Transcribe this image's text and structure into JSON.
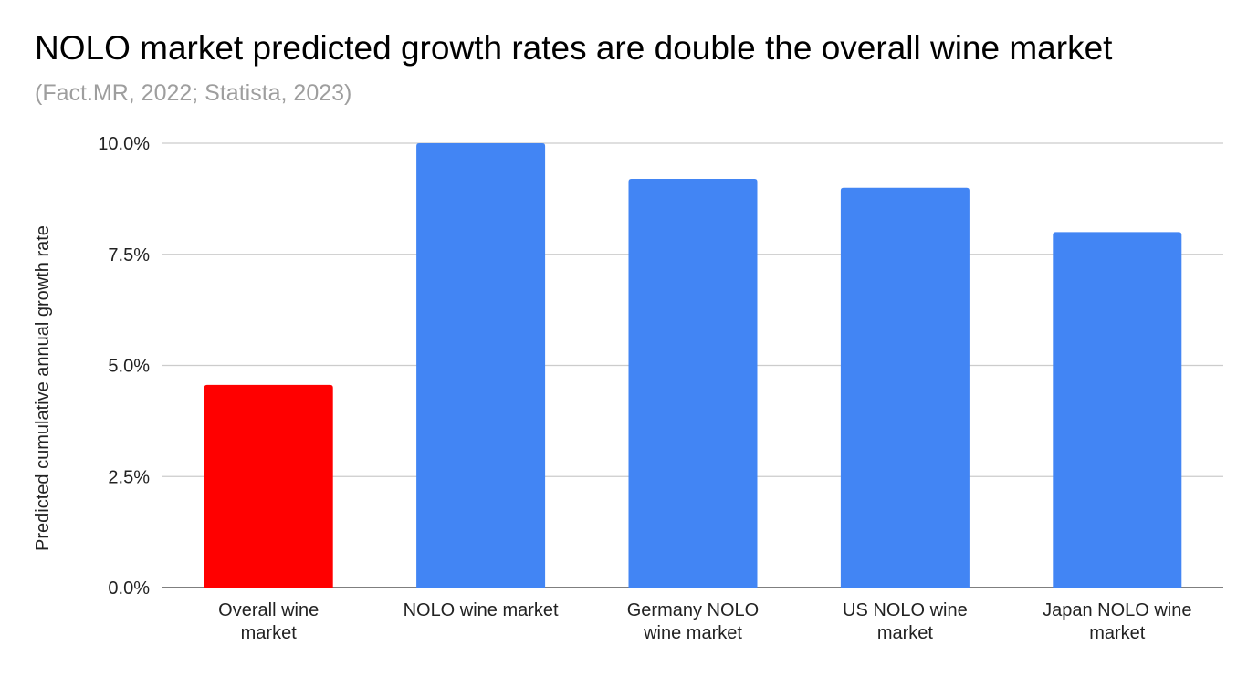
{
  "chart_data": {
    "type": "bar",
    "title": "NOLO market predicted growth rates are double the overall wine market",
    "subtitle": "(Fact.MR, 2022; Statista, 2023)",
    "xlabel": "",
    "ylabel": "Predicted cumulative annual growth rate",
    "ylim": [
      0,
      10
    ],
    "yticks": [
      "0.0%",
      "2.5%",
      "5.0%",
      "7.5%",
      "10.0%"
    ],
    "ytick_values": [
      0,
      2.5,
      5,
      7.5,
      10
    ],
    "grid": true,
    "categories": [
      [
        "Overall wine",
        "market"
      ],
      [
        "NOLO wine market"
      ],
      [
        "Germany NOLO",
        "wine market"
      ],
      [
        "US NOLO wine",
        "market"
      ],
      [
        "Japan NOLO wine",
        "market"
      ]
    ],
    "values": [
      4.56,
      10.0,
      9.2,
      9.0,
      8.0
    ],
    "colors": [
      "#ff0000",
      "#4285f4",
      "#4285f4",
      "#4285f4",
      "#4285f4"
    ]
  }
}
